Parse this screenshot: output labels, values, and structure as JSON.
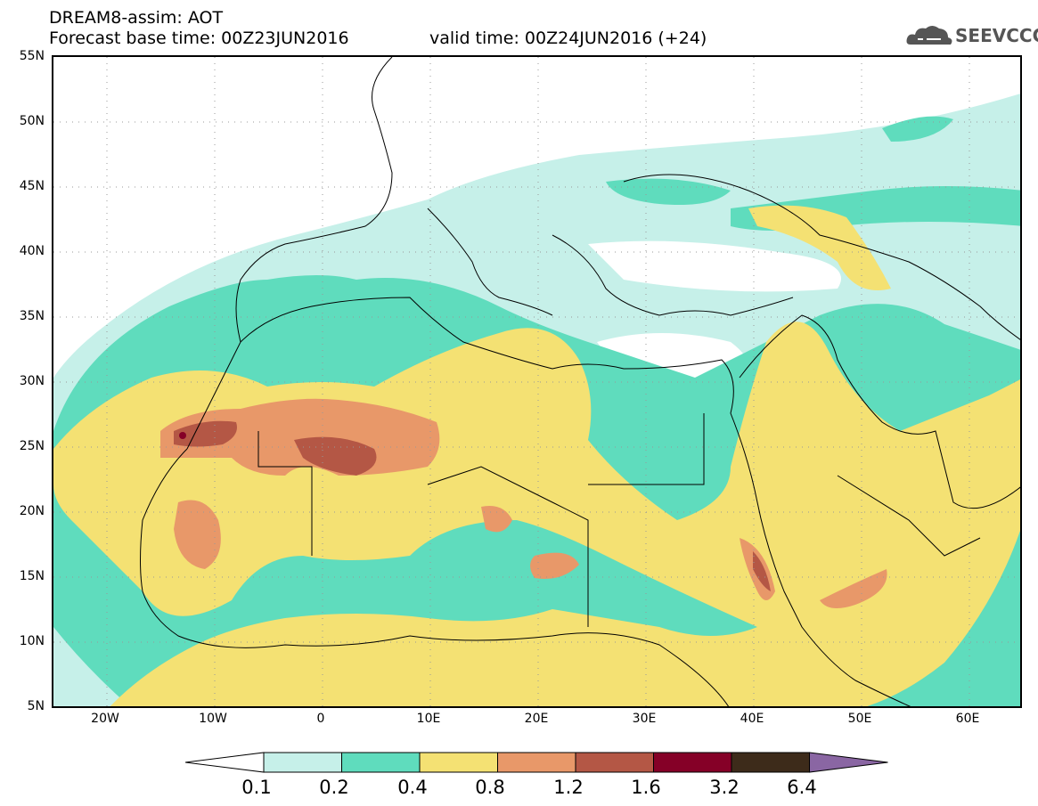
{
  "header": {
    "title": "DREAM8-assim: AOT",
    "base_time": "Forecast base time: 00Z23JUN2016",
    "valid_time": "valid time: 00Z24JUN2016 (+24)"
  },
  "logo": {
    "text": "SEEVCCC",
    "icon": "cloud-icon"
  },
  "map": {
    "lat_labels": [
      "55N",
      "50N",
      "45N",
      "40N",
      "35N",
      "30N",
      "25N",
      "20N",
      "15N",
      "10N",
      "5N"
    ],
    "lon_labels": [
      "20W",
      "10W",
      "0",
      "10E",
      "20E",
      "30E",
      "40E",
      "50E",
      "60E"
    ],
    "lat_range": [
      5,
      55
    ],
    "lon_range": [
      -25,
      65
    ]
  },
  "legend": {
    "labels": [
      "0.1",
      "0.2",
      "0.4",
      "0.8",
      "1.2",
      "1.6",
      "3.2",
      "6.4"
    ],
    "colors": [
      "#ffffff",
      "#c6f0e9",
      "#5fdcbd",
      "#f4e173",
      "#e89869",
      "#b45745",
      "#850027",
      "#3d2b1a",
      "#8a66a3"
    ]
  }
}
